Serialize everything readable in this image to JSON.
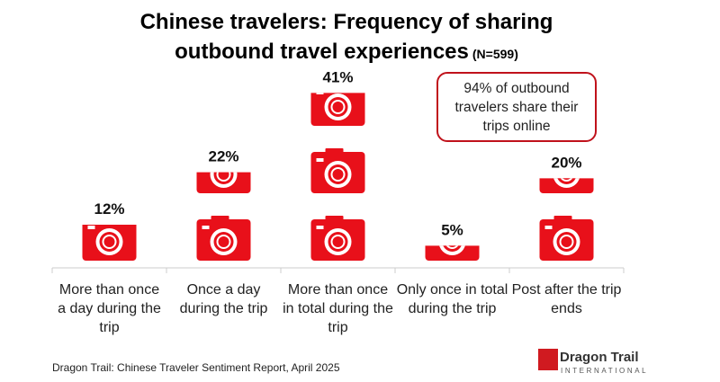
{
  "chart_data": {
    "type": "pictograph",
    "title": "Chinese travelers: Frequency of sharing outbound travel experiences",
    "subtitle": "(N=599)",
    "categories": [
      "More than once a day during the trip",
      "Once a day during the trip",
      "More than once in total during the trip",
      "Only once in total during the trip",
      "Post after the trip ends"
    ],
    "values": [
      12,
      22,
      41,
      5,
      20
    ],
    "value_labels": [
      "12%",
      "22%",
      "41%",
      "5%",
      "20%"
    ],
    "color": "#e8101a",
    "annotation": "94% of outbound travelers share their trips online",
    "source": "Dragon Trail: Chinese Traveler Sentiment Report, April 2025"
  },
  "logo": {
    "name": "Dragon Trail",
    "tagline": "INTERNATIONAL"
  }
}
